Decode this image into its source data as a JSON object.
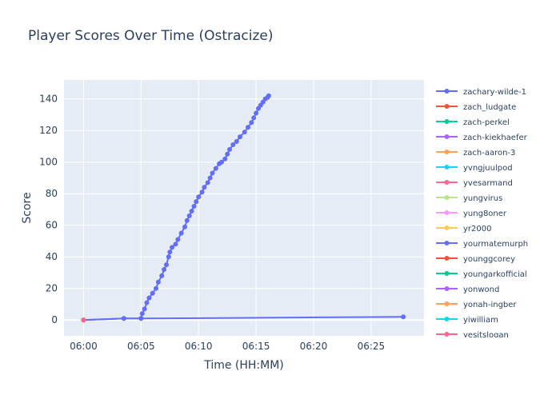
{
  "chart_data": {
    "type": "line",
    "title": "Player Scores Over Time (Ostracize)",
    "xlabel": "Time (HH:MM)",
    "ylabel": "Score",
    "x_unit": "minutes after 06:00",
    "xlim": [
      -1.7,
      29.6
    ],
    "ylim": [
      -10,
      152
    ],
    "x_ticks": [
      {
        "value": 0,
        "label": "06:00"
      },
      {
        "value": 5,
        "label": "06:05"
      },
      {
        "value": 10,
        "label": "06:10"
      },
      {
        "value": 15,
        "label": "06:15"
      },
      {
        "value": 20,
        "label": "06:20"
      },
      {
        "value": 25,
        "label": "06:25"
      }
    ],
    "y_ticks": [
      0,
      20,
      40,
      60,
      80,
      100,
      120,
      140
    ],
    "grid": true,
    "legend_position": "right",
    "plot_background": "#e5ecf6",
    "series": [
      {
        "name": "zachary-wilde-1",
        "color": "#636efa",
        "x": [
          0.0,
          3.5,
          5.0,
          5.1,
          5.3,
          5.5,
          5.7,
          6.0,
          6.3,
          6.5,
          6.8,
          7.0,
          7.2,
          7.4,
          7.5,
          7.7,
          8.0,
          8.2,
          8.5,
          8.8,
          9.0,
          9.2,
          9.4,
          9.6,
          9.8,
          10.0,
          10.3,
          10.5,
          10.8,
          11.0,
          11.2,
          11.5,
          11.8,
          12.0,
          12.3,
          12.5,
          12.7,
          13.0,
          13.3,
          13.6,
          14.0,
          14.3,
          14.6,
          14.8,
          15.0,
          15.2,
          15.4,
          15.6,
          15.8,
          16.0,
          16.1
        ],
        "y": [
          0,
          1,
          1,
          4,
          7,
          11,
          14,
          17,
          20,
          24,
          28,
          32,
          35,
          40,
          43,
          46,
          48,
          51,
          55,
          59,
          63,
          66,
          69,
          72,
          75,
          78,
          81,
          84,
          87,
          90,
          93,
          96,
          99,
          100,
          102,
          105,
          108,
          111,
          113,
          116,
          119,
          122,
          125,
          128,
          131,
          134,
          136,
          138,
          140,
          141,
          142
        ]
      },
      {
        "name": "zach_ludgate",
        "color": "#ef553b",
        "x": [
          0.0
        ],
        "y": [
          0
        ]
      },
      {
        "name": "zach-perkel",
        "color": "#00cc96",
        "x": [
          0.0
        ],
        "y": [
          0
        ]
      },
      {
        "name": "zach-kiekhaefer",
        "color": "#ab63fa",
        "x": [
          0.0
        ],
        "y": [
          0
        ]
      },
      {
        "name": "zach-aaron-3",
        "color": "#ffa15a",
        "x": [
          0.0
        ],
        "y": [
          0
        ]
      },
      {
        "name": "yvngjuulpod",
        "color": "#19d3f3",
        "x": [
          0.0
        ],
        "y": [
          0
        ]
      },
      {
        "name": "yvesarmand",
        "color": "#ff6692",
        "x": [
          0.0
        ],
        "y": [
          0
        ]
      },
      {
        "name": "yungvirus",
        "color": "#b6e880",
        "x": [
          0.0
        ],
        "y": [
          0
        ]
      },
      {
        "name": "yung8oner",
        "color": "#ff97ff",
        "x": [
          0.0
        ],
        "y": [
          0
        ]
      },
      {
        "name": "yr2000",
        "color": "#fecb52",
        "x": [
          0.0
        ],
        "y": [
          0
        ]
      },
      {
        "name": "yourmatemurph",
        "color": "#636efa",
        "x": [
          0.0,
          3.5,
          5.0,
          27.8
        ],
        "y": [
          0,
          1,
          1,
          2
        ]
      },
      {
        "name": "younggcorey",
        "color": "#ef553b",
        "x": [
          0.0
        ],
        "y": [
          0
        ]
      },
      {
        "name": "youngarkofficial",
        "color": "#00cc96",
        "x": [
          0.0
        ],
        "y": [
          0
        ]
      },
      {
        "name": "yonwond",
        "color": "#ab63fa",
        "x": [
          0.0
        ],
        "y": [
          0
        ]
      },
      {
        "name": "yonah-ingber",
        "color": "#ffa15a",
        "x": [
          0.0
        ],
        "y": [
          0
        ]
      },
      {
        "name": "yiwilliam",
        "color": "#19d3f3",
        "x": [
          0.0
        ],
        "y": [
          0
        ]
      },
      {
        "name": "yesitslogan",
        "color": "#ff6692",
        "x": [
          0.0
        ],
        "y": [
          0
        ]
      }
    ]
  }
}
